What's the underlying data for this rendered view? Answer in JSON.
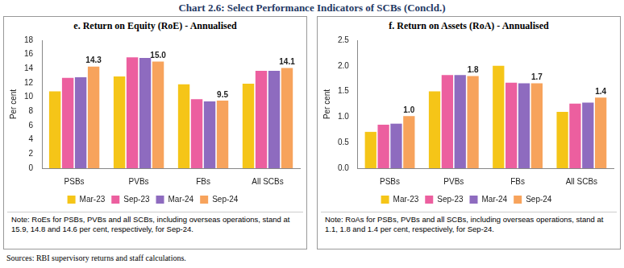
{
  "title": "Chart 2.6: Select Performance Indicators of SCBs (Concld.)",
  "source": "Sources: RBI supervisory returns and staff calculations.",
  "chart_data": [
    {
      "type": "bar",
      "title": "e. Return on Equity (RoE) - Annualised",
      "y_label": "Per cent",
      "categories": [
        "PSBs",
        "PVBs",
        "FBs",
        "All SCBs"
      ],
      "series": [
        {
          "name": "Mar-23",
          "color": "#f5c518",
          "values": [
            10.8,
            12.9,
            11.8,
            11.9
          ]
        },
        {
          "name": "Sep-23",
          "color": "#ec5f9f",
          "values": [
            12.7,
            15.6,
            9.7,
            13.7
          ]
        },
        {
          "name": "Mar-24",
          "color": "#8e6bbf",
          "values": [
            12.8,
            15.5,
            9.4,
            13.7
          ]
        },
        {
          "name": "Sep-24",
          "color": "#f7a35c",
          "values": [
            14.3,
            15.0,
            9.5,
            14.1
          ],
          "value_labels": [
            "14.3",
            "15.0",
            "9.5",
            "14.1"
          ]
        }
      ],
      "ylim": [
        0,
        18
      ],
      "yticks": [
        0,
        2,
        4,
        6,
        8,
        10,
        12,
        14,
        16,
        18
      ],
      "grid": false,
      "legend": "bottom",
      "note": "Note: RoEs for PSBs, PVBs and all SCBs, including overseas operations, stand at 15.9, 14.8 and 14.6 per cent, respectively, for Sep-24."
    },
    {
      "type": "bar",
      "title": "f. Return on Assets (RoA) - Annualised",
      "y_label": "Per cent",
      "categories": [
        "PSBs",
        "PVBs",
        "FBs",
        "All SCBs"
      ],
      "series": [
        {
          "name": "Mar-23",
          "color": "#f5c518",
          "values": [
            0.71,
            1.5,
            2.0,
            1.1
          ]
        },
        {
          "name": "Sep-23",
          "color": "#ec5f9f",
          "values": [
            0.85,
            1.82,
            1.67,
            1.26
          ]
        },
        {
          "name": "Mar-24",
          "color": "#8e6bbf",
          "values": [
            0.87,
            1.82,
            1.66,
            1.28
          ]
        },
        {
          "name": "Sep-24",
          "color": "#f7a35c",
          "values": [
            1.02,
            1.8,
            1.66,
            1.38
          ],
          "value_labels": [
            "1.0",
            "1.8",
            "1.7",
            "1.4"
          ]
        }
      ],
      "ylim": [
        0,
        2.5
      ],
      "yticks": [
        {
          "value": 0,
          "label": "0.0"
        },
        {
          "value": 0.5,
          "label": "0.5"
        },
        {
          "value": 1,
          "label": "1.0"
        },
        {
          "value": 1.5,
          "label": "1.5"
        },
        {
          "value": 2,
          "label": "2.0"
        },
        {
          "value": 2.5,
          "label": "2.5"
        }
      ],
      "grid": false,
      "legend": "bottom",
      "note": "Note: RoAs for PSBs, PVBs and all SCBs, including overseas operations, stand at 1.1, 1.8 and 1.4 per cent, respectively, for Sep-24."
    }
  ]
}
